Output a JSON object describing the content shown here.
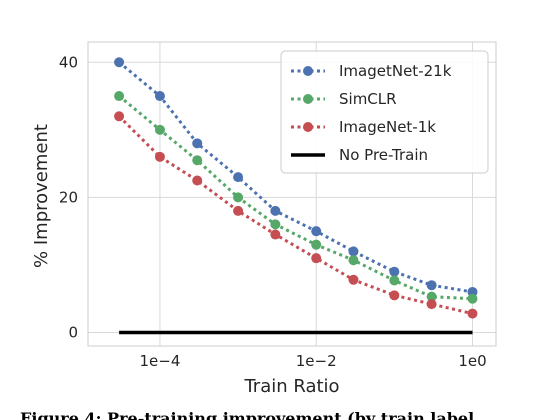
{
  "chart_data": {
    "type": "line",
    "title": "",
    "xlabel": "Train Ratio",
    "ylabel": "% Improvement",
    "xscale": "log",
    "xlim": [
      1.2e-05,
      2.0
    ],
    "ylim": [
      -2,
      43
    ],
    "xticks": [
      0.0001,
      0.01,
      1
    ],
    "xtick_labels": [
      "1e−4",
      "1e−2",
      "1e0"
    ],
    "yticks": [
      0,
      20,
      40
    ],
    "ytick_labels": [
      "0",
      "20",
      "40"
    ],
    "grid": true,
    "legend_position": "top-right",
    "x": [
      3e-05,
      0.0001,
      0.0003,
      0.001,
      0.003,
      0.01,
      0.03,
      0.1,
      0.3,
      1.0
    ],
    "series": [
      {
        "name": "ImagetNet-21k",
        "color": "#4c72b0",
        "style": "dotted-marker",
        "values": [
          40,
          35,
          28,
          23,
          18,
          15,
          12,
          9,
          7,
          6
        ]
      },
      {
        "name": "SimCLR",
        "color": "#55a868",
        "style": "dotted-marker",
        "values": [
          35,
          30,
          25.5,
          20,
          16,
          13,
          10.7,
          7.7,
          5.3,
          5
        ]
      },
      {
        "name": "ImageNet-1k",
        "color": "#c44e52",
        "style": "dotted-marker",
        "values": [
          32,
          26,
          22.5,
          18,
          14.5,
          11,
          7.8,
          5.5,
          4.2,
          2.8
        ]
      },
      {
        "name": "No Pre-Train",
        "color": "#000000",
        "style": "solid",
        "values": [
          0,
          0,
          0,
          0,
          0,
          0,
          0,
          0,
          0,
          0
        ]
      }
    ]
  },
  "caption": "Figure 4: Pre-training improvement (by train label"
}
